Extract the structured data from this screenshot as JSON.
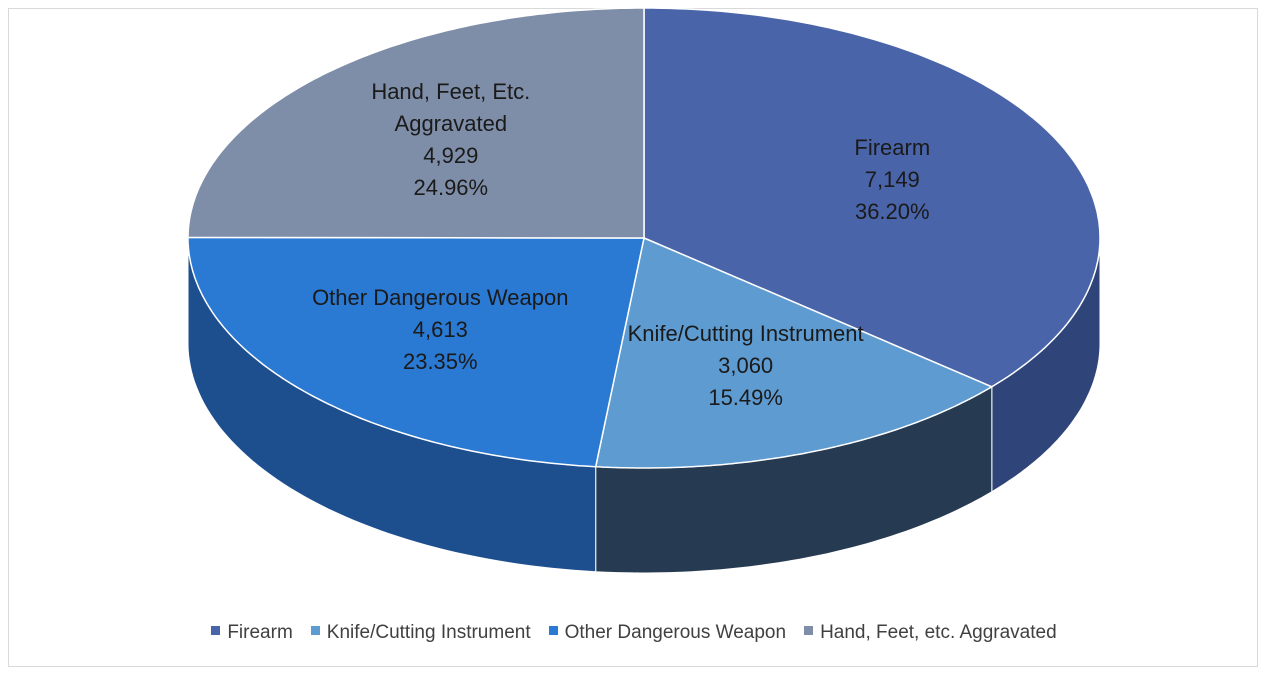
{
  "chart_data": {
    "type": "pie",
    "categories": [
      "Firearm",
      "Knife/Cutting Instrument",
      "Other Dangerous Weapon",
      "Hand, Feet, etc. Aggravated"
    ],
    "label_names": [
      "Firearm",
      "Knife/Cutting Instrument",
      "Other Dangerous Weapon",
      "Hand, Feet, Etc. Aggravated"
    ],
    "values": [
      7149,
      3060,
      4613,
      4929
    ],
    "value_labels": [
      "7,149",
      "3,060",
      "4,613",
      "4,929"
    ],
    "percent_labels": [
      "36.20%",
      "15.49%",
      "23.35%",
      "24.96%"
    ],
    "colors": [
      "#4a64a9",
      "#5e9bd1",
      "#2a79d2",
      "#7f8ea8"
    ],
    "side_colors": [
      "#2f4478",
      "#263b52",
      "#1d4f8f",
      "#4e5c74"
    ],
    "legend": "bottom"
  }
}
